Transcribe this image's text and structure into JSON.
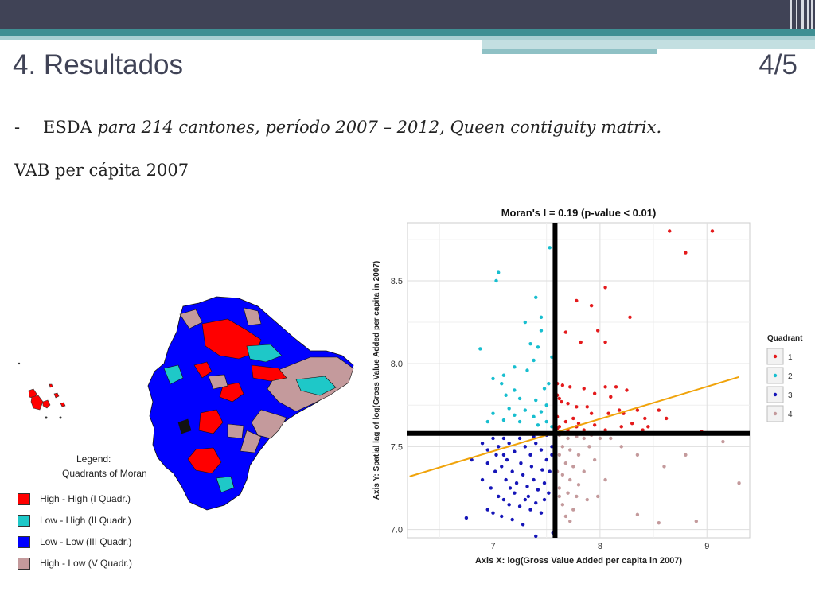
{
  "slide": {
    "title": "4. Resultados",
    "page": "4/5",
    "bullet_dash": "-",
    "bullet_lead": "ESDA ",
    "bullet_rest": "para 214 cantones, período 2007 – 2012, Queen contiguity matrix.",
    "subhead": "VAB per cápita 2007"
  },
  "map_legend": {
    "title_line1": "Legend:",
    "title_line2": "Quadrants of Moran",
    "items": [
      {
        "label": "High - High (I Quadr.)",
        "color": "#ff0000"
      },
      {
        "label": "Low - High (II Quadr.)",
        "color": "#1ec8c8"
      },
      {
        "label": "Low - Low (III Quadr.)",
        "color": "#0000ff"
      },
      {
        "label": "High - Low (V Quadr.)",
        "color": "#c49a9c"
      }
    ]
  },
  "chart_data": {
    "type": "scatter",
    "title": "Moran's I = 0.19 (p-value < 0.01)",
    "xlabel": "Axis X: log(Gross Value Added per capita in 2007)",
    "ylabel": "Axis Y: Spatial lag of log(Gross Value Added per capita in 2007)",
    "xlim": [
      6.2,
      9.4
    ],
    "ylim": [
      6.95,
      8.85
    ],
    "x_ticks": [
      7,
      8,
      9
    ],
    "y_ticks": [
      7.0,
      7.5,
      8.0,
      8.5
    ],
    "x_tick_labels": [
      "7",
      "8",
      "9"
    ],
    "y_tick_labels": [
      "7.0",
      "7.5",
      "8.0",
      "8.5"
    ],
    "grid": true,
    "mean_x": 7.58,
    "mean_y": 7.58,
    "regression": {
      "x": [
        6.22,
        9.3
      ],
      "y": [
        7.32,
        7.92
      ],
      "color": "#f0a30a"
    },
    "legend_title": "Quadrant",
    "legend_position": "right",
    "series": [
      {
        "name": "1",
        "color": "#e41a1c",
        "points": [
          [
            8.65,
            8.8
          ],
          [
            9.05,
            8.8
          ],
          [
            8.8,
            8.67
          ],
          [
            8.05,
            8.46
          ],
          [
            7.78,
            8.38
          ],
          [
            7.92,
            8.35
          ],
          [
            8.28,
            8.28
          ],
          [
            7.98,
            8.2
          ],
          [
            7.68,
            8.19
          ],
          [
            7.82,
            8.13
          ],
          [
            8.05,
            8.13
          ],
          [
            7.6,
            7.88
          ],
          [
            7.65,
            7.87
          ],
          [
            7.72,
            7.86
          ],
          [
            7.85,
            7.85
          ],
          [
            8.05,
            7.86
          ],
          [
            8.15,
            7.86
          ],
          [
            8.25,
            7.84
          ],
          [
            7.95,
            7.82
          ],
          [
            8.1,
            7.8
          ],
          [
            7.6,
            7.81
          ],
          [
            7.62,
            7.79
          ],
          [
            7.64,
            7.77
          ],
          [
            7.7,
            7.76
          ],
          [
            7.78,
            7.74
          ],
          [
            7.88,
            7.74
          ],
          [
            8.18,
            7.72
          ],
          [
            8.35,
            7.72
          ],
          [
            8.55,
            7.72
          ],
          [
            7.92,
            7.7
          ],
          [
            8.08,
            7.7
          ],
          [
            8.22,
            7.7
          ],
          [
            8.42,
            7.67
          ],
          [
            8.62,
            7.67
          ],
          [
            7.6,
            7.68
          ],
          [
            7.75,
            7.67
          ],
          [
            7.68,
            7.65
          ],
          [
            7.8,
            7.64
          ],
          [
            8.3,
            7.64
          ],
          [
            8.45,
            7.62
          ],
          [
            7.95,
            7.63
          ],
          [
            7.62,
            7.62
          ],
          [
            7.7,
            7.6
          ],
          [
            7.85,
            7.6
          ],
          [
            8.05,
            7.6
          ],
          [
            8.2,
            7.62
          ],
          [
            8.4,
            7.6
          ],
          [
            8.95,
            7.59
          ],
          [
            7.6,
            7.61
          ],
          [
            7.78,
            7.62
          ]
        ]
      },
      {
        "name": "2",
        "color": "#17becf",
        "points": [
          [
            7.53,
            8.7
          ],
          [
            7.05,
            8.55
          ],
          [
            7.03,
            8.5
          ],
          [
            7.4,
            8.4
          ],
          [
            7.45,
            8.28
          ],
          [
            7.3,
            8.25
          ],
          [
            7.45,
            8.2
          ],
          [
            7.35,
            8.12
          ],
          [
            7.42,
            8.1
          ],
          [
            6.88,
            8.09
          ],
          [
            7.55,
            8.04
          ],
          [
            7.38,
            8.02
          ],
          [
            7.2,
            7.98
          ],
          [
            7.32,
            7.96
          ],
          [
            7.1,
            7.93
          ],
          [
            7.0,
            7.91
          ],
          [
            7.08,
            7.88
          ],
          [
            7.52,
            7.88
          ],
          [
            7.48,
            7.85
          ],
          [
            7.2,
            7.84
          ],
          [
            7.12,
            7.81
          ],
          [
            7.25,
            7.79
          ],
          [
            7.4,
            7.78
          ],
          [
            7.5,
            7.75
          ],
          [
            7.15,
            7.73
          ],
          [
            7.3,
            7.72
          ],
          [
            7.45,
            7.71
          ],
          [
            7.0,
            7.7
          ],
          [
            7.2,
            7.69
          ],
          [
            7.38,
            7.68
          ],
          [
            7.1,
            7.66
          ],
          [
            6.95,
            7.65
          ],
          [
            7.25,
            7.65
          ],
          [
            7.5,
            7.65
          ],
          [
            7.42,
            7.63
          ],
          [
            7.55,
            7.62
          ]
        ]
      },
      {
        "name": "3",
        "color": "#1515b8",
        "points": [
          [
            6.8,
            7.42
          ],
          [
            6.9,
            7.52
          ],
          [
            6.95,
            7.48
          ],
          [
            7.0,
            7.55
          ],
          [
            7.05,
            7.5
          ],
          [
            7.1,
            7.45
          ],
          [
            7.15,
            7.52
          ],
          [
            7.2,
            7.47
          ],
          [
            7.25,
            7.55
          ],
          [
            7.3,
            7.5
          ],
          [
            7.35,
            7.45
          ],
          [
            7.4,
            7.52
          ],
          [
            7.45,
            7.48
          ],
          [
            7.5,
            7.42
          ],
          [
            7.55,
            7.5
          ],
          [
            6.95,
            7.4
          ],
          [
            7.02,
            7.35
          ],
          [
            7.08,
            7.38
          ],
          [
            7.12,
            7.3
          ],
          [
            7.18,
            7.35
          ],
          [
            7.22,
            7.28
          ],
          [
            7.28,
            7.33
          ],
          [
            7.32,
            7.26
          ],
          [
            7.38,
            7.3
          ],
          [
            7.42,
            7.24
          ],
          [
            7.48,
            7.28
          ],
          [
            7.52,
            7.22
          ],
          [
            6.98,
            7.25
          ],
          [
            7.05,
            7.2
          ],
          [
            7.1,
            7.18
          ],
          [
            7.15,
            7.15
          ],
          [
            7.2,
            7.22
          ],
          [
            7.25,
            7.14
          ],
          [
            7.3,
            7.18
          ],
          [
            7.35,
            7.12
          ],
          [
            7.4,
            7.16
          ],
          [
            7.45,
            7.1
          ],
          [
            7.0,
            7.1
          ],
          [
            7.08,
            7.08
          ],
          [
            7.18,
            7.06
          ],
          [
            7.28,
            7.03
          ],
          [
            6.75,
            7.07
          ],
          [
            6.95,
            7.12
          ],
          [
            7.4,
            6.96
          ],
          [
            7.56,
            6.98
          ],
          [
            7.13,
            7.42
          ],
          [
            7.26,
            7.4
          ],
          [
            7.36,
            7.38
          ],
          [
            7.46,
            7.36
          ],
          [
            7.03,
            7.45
          ],
          [
            7.53,
            7.35
          ],
          [
            7.16,
            7.25
          ],
          [
            7.33,
            7.2
          ],
          [
            7.48,
            7.18
          ],
          [
            7.1,
            7.55
          ],
          [
            7.22,
            7.58
          ],
          [
            7.38,
            7.56
          ],
          [
            7.5,
            7.57
          ],
          [
            6.9,
            7.3
          ],
          [
            7.55,
            7.45
          ]
        ]
      },
      {
        "name": "4",
        "color": "#c49a9c",
        "points": [
          [
            7.62,
            7.57
          ],
          [
            7.7,
            7.55
          ],
          [
            7.78,
            7.56
          ],
          [
            7.85,
            7.55
          ],
          [
            7.92,
            7.57
          ],
          [
            8.0,
            7.55
          ],
          [
            7.65,
            7.5
          ],
          [
            7.72,
            7.48
          ],
          [
            7.8,
            7.45
          ],
          [
            7.9,
            7.5
          ],
          [
            7.62,
            7.45
          ],
          [
            7.68,
            7.4
          ],
          [
            7.75,
            7.38
          ],
          [
            7.85,
            7.35
          ],
          [
            7.95,
            7.42
          ],
          [
            7.65,
            7.33
          ],
          [
            7.72,
            7.3
          ],
          [
            7.8,
            7.27
          ],
          [
            7.62,
            7.25
          ],
          [
            7.7,
            7.22
          ],
          [
            7.78,
            7.2
          ],
          [
            7.88,
            7.18
          ],
          [
            7.98,
            7.2
          ],
          [
            7.65,
            7.15
          ],
          [
            7.75,
            7.12
          ],
          [
            7.6,
            7.35
          ],
          [
            7.62,
            7.2
          ],
          [
            7.68,
            7.08
          ],
          [
            7.72,
            7.05
          ],
          [
            8.1,
            7.55
          ],
          [
            8.2,
            7.5
          ],
          [
            8.35,
            7.45
          ],
          [
            8.6,
            7.38
          ],
          [
            8.8,
            7.45
          ],
          [
            9.15,
            7.53
          ],
          [
            9.3,
            7.28
          ],
          [
            8.35,
            7.09
          ],
          [
            8.55,
            7.04
          ],
          [
            8.9,
            7.05
          ],
          [
            8.05,
            7.3
          ]
        ]
      }
    ]
  }
}
